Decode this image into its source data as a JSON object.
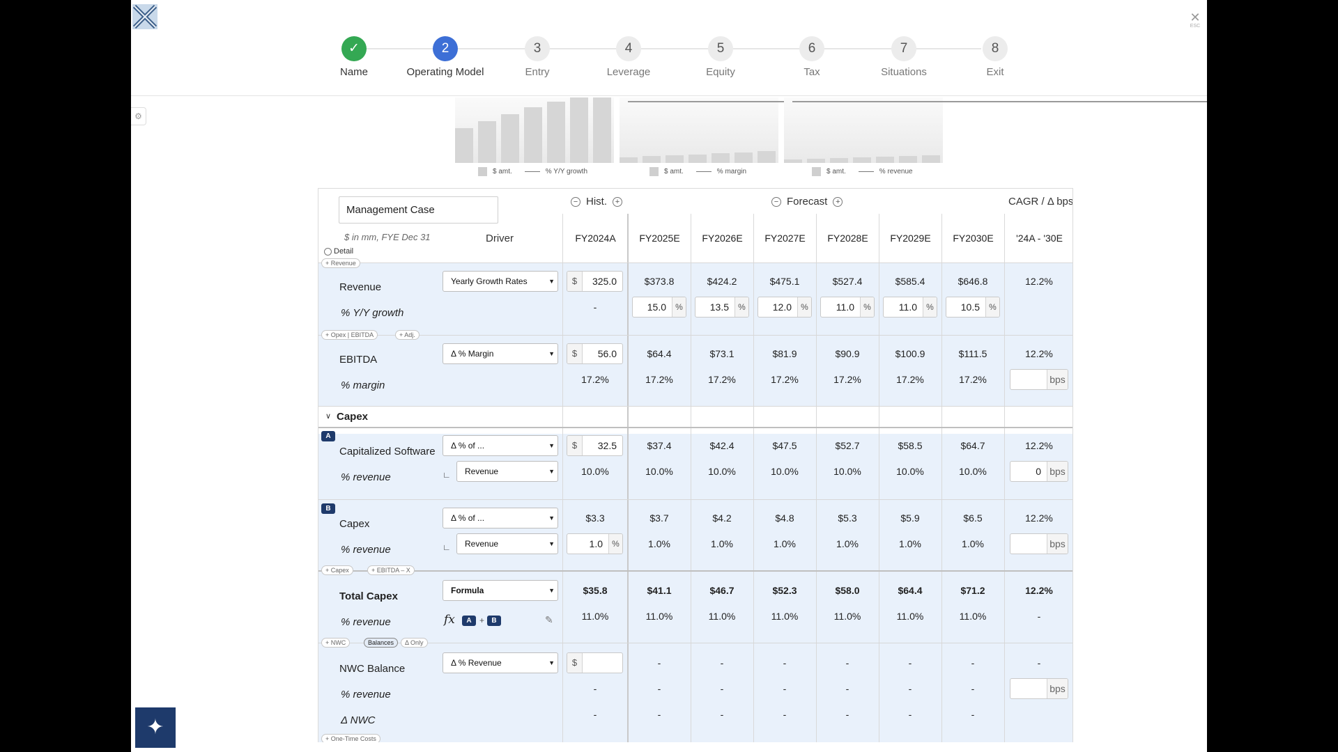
{
  "close": {
    "symbol": "✕",
    "hint": "ESC"
  },
  "steps": [
    {
      "num": "✓",
      "label": "Name",
      "state": "done"
    },
    {
      "num": "2",
      "label": "Operating Model",
      "state": "active"
    },
    {
      "num": "3",
      "label": "Entry",
      "state": "todo"
    },
    {
      "num": "4",
      "label": "Leverage",
      "state": "todo"
    },
    {
      "num": "5",
      "label": "Equity",
      "state": "todo"
    },
    {
      "num": "6",
      "label": "Tax",
      "state": "todo"
    },
    {
      "num": "7",
      "label": "Situations",
      "state": "todo"
    },
    {
      "num": "8",
      "label": "Exit",
      "state": "todo"
    }
  ],
  "legends": [
    {
      "bar": "$ amt.",
      "line": "% Y/Y growth"
    },
    {
      "bar": "$ amt.",
      "line": "% margin"
    },
    {
      "bar": "$ amt.",
      "line": "% revenue"
    }
  ],
  "header": {
    "case_name": "Management Case",
    "hist": "Hist.",
    "forecast": "Forecast",
    "cagr": "CAGR / Δ bps",
    "units": "$ in mm, FYE Dec 31",
    "driver": "Driver",
    "detail": "Detail",
    "columns": [
      "FY2024A",
      "FY2025E",
      "FY2026E",
      "FY2027E",
      "FY2028E",
      "FY2029E",
      "FY2030E",
      "'24A - '30E"
    ]
  },
  "pills": {
    "revenue": "+ Revenue",
    "opex": "+ Opex | EBITDA",
    "adj": "+ Adj.",
    "capex": "+ Capex",
    "ebitda_x": "+ EBITDA – X",
    "nwc": "+ NWC",
    "balances": "Balances",
    "delta_only": "Δ Only",
    "one_time": "+ One-Time Costs"
  },
  "revenue": {
    "label": "Revenue",
    "driver": "Yearly Growth Rates",
    "cur": "$",
    "hist": "325.0",
    "values": [
      "$373.8",
      "$424.2",
      "$475.1",
      "$527.4",
      "$585.4",
      "$646.8"
    ],
    "cagr": "12.2%",
    "growth_label": "% Y/Y growth",
    "growth_hist": "-",
    "growth": [
      "15.0",
      "13.5",
      "12.0",
      "11.0",
      "11.0",
      "10.5"
    ],
    "pct": "%"
  },
  "ebitda": {
    "label": "EBITDA",
    "driver": "Δ % Margin",
    "cur": "$",
    "hist": "56.0",
    "values": [
      "$64.4",
      "$73.1",
      "$81.9",
      "$90.9",
      "$100.9",
      "$111.5"
    ],
    "cagr": "12.2%",
    "margin_label": "% margin",
    "margin_hist": "17.2%",
    "margin": [
      "17.2%",
      "17.2%",
      "17.2%",
      "17.2%",
      "17.2%",
      "17.2%"
    ],
    "bps": "bps",
    "margin_bps": ""
  },
  "capex_section": {
    "title": "Capex"
  },
  "cap_sw": {
    "badge": "A",
    "label": "Capitalized Software",
    "driver": "Δ % of ...",
    "cur": "$",
    "hist": "32.5",
    "values": [
      "$37.4",
      "$42.4",
      "$47.5",
      "$52.7",
      "$58.5",
      "$64.7"
    ],
    "cagr": "12.2%",
    "pct_label": "% revenue",
    "of": "Revenue",
    "pct_hist": "10.0%",
    "pct": [
      "10.0%",
      "10.0%",
      "10.0%",
      "10.0%",
      "10.0%",
      "10.0%"
    ],
    "bps_val": "0",
    "bps": "bps"
  },
  "capex": {
    "badge": "B",
    "label": "Capex",
    "driver": "Δ % of ...",
    "hist": "$3.3",
    "values": [
      "$3.7",
      "$4.2",
      "$4.8",
      "$5.3",
      "$5.9",
      "$6.5"
    ],
    "cagr": "12.2%",
    "pct_label": "% revenue",
    "of": "Revenue",
    "pct_hist": "1.0",
    "pct_unit": "%",
    "pct": [
      "1.0%",
      "1.0%",
      "1.0%",
      "1.0%",
      "1.0%",
      "1.0%"
    ],
    "bps": "bps",
    "bps_val": ""
  },
  "total_capex": {
    "label": "Total Capex",
    "driver": "Formula",
    "hist": "$35.8",
    "values": [
      "$41.1",
      "$46.7",
      "$52.3",
      "$58.0",
      "$64.4",
      "$71.2"
    ],
    "cagr": "12.2%",
    "pct_label": "% revenue",
    "fx": "fx",
    "a": "A",
    "plus": "+",
    "b": "B",
    "pct_hist": "11.0%",
    "pct": [
      "11.0%",
      "11.0%",
      "11.0%",
      "11.0%",
      "11.0%",
      "11.0%"
    ],
    "pct_cagr": "-"
  },
  "nwc": {
    "label": "NWC Balance",
    "driver": "Δ % Revenue",
    "cur": "$",
    "hist": "",
    "values": [
      "-",
      "-",
      "-",
      "-",
      "-",
      "-"
    ],
    "cagr": "-",
    "pct_label": "% revenue",
    "pct_hist": "-",
    "pct": [
      "-",
      "-",
      "-",
      "-",
      "-",
      "-"
    ],
    "bps": "bps",
    "bps_val": "",
    "delta_label": "Δ NWC",
    "delta_hist": "-",
    "delta": [
      "-",
      "-",
      "-",
      "-",
      "-",
      "-"
    ]
  }
}
